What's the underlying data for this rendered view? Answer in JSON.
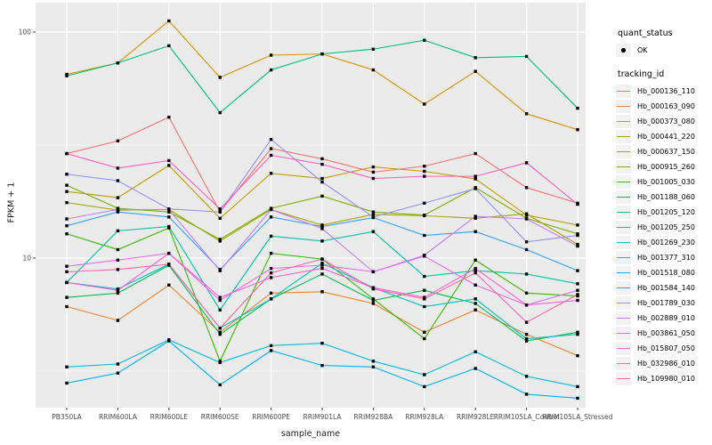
{
  "chart_data": {
    "type": "line",
    "title": "",
    "xlabel": "sample_name",
    "ylabel": "FPKM + 1",
    "y_scale": "log10",
    "ylim": [
      2.2,
      135
    ],
    "yticks": [
      10,
      100
    ],
    "ytick_labels": [
      "10",
      "100"
    ],
    "grid": true,
    "panel_background": "#EBEBEB",
    "grid_color": "#FFFFFF",
    "tick_text_color": "#4D4D4D",
    "point_color": "#000000",
    "point_shape": "small-filled-square",
    "legend_position": "right",
    "marker_legend": {
      "title": "quant_status",
      "label": "OK"
    },
    "series_legend": {
      "title": "tracking_id"
    },
    "categories": [
      "PB350LA",
      "RRIM600LA",
      "RRIM600LE",
      "RRIM600SE",
      "RRIM600PE",
      "RRIM901LA",
      "RRIM928BA",
      "RRIM928LA",
      "RRIM928LE",
      "RRIM105LA_Control",
      "RRIM105LA_Stressed"
    ],
    "series": [
      {
        "name": "Hb_000136_110",
        "color": "#F8766D",
        "values": [
          29,
          33,
          42,
          16,
          30.5,
          27.5,
          24,
          25.5,
          29,
          20.5,
          17.5
        ]
      },
      {
        "name": "Hb_000163_090",
        "color": "#EA8331",
        "values": [
          6.1,
          5.3,
          7.6,
          4.7,
          7.0,
          7.1,
          6.3,
          4.7,
          5.9,
          4.6,
          3.7
        ]
      },
      {
        "name": "Hb_000373_080",
        "color": "#D89000",
        "values": [
          65,
          73,
          112,
          63,
          79,
          80,
          68,
          48,
          67,
          43.5,
          37
        ]
      },
      {
        "name": "Hb_000441_220",
        "color": "#C09B00",
        "values": [
          19.7,
          18.5,
          25.7,
          15,
          23.7,
          22.5,
          25.3,
          24.2,
          22.4,
          15.5,
          14
        ]
      },
      {
        "name": "Hb_000637_150",
        "color": "#A3A500",
        "values": [
          17.6,
          16.3,
          16.4,
          11.9,
          16.4,
          14,
          15.6,
          15.4,
          15,
          15.7,
          11.5
        ]
      },
      {
        "name": "Hb_000915_260",
        "color": "#7CAE00",
        "values": [
          21,
          16.6,
          16,
          12.1,
          16.6,
          18.8,
          16,
          15.5,
          20.5,
          15,
          12.8
        ]
      },
      {
        "name": "Hb_001005_030",
        "color": "#39B600",
        "values": [
          12.8,
          10.9,
          13.6,
          3.5,
          10.5,
          9.9,
          6.6,
          4.4,
          9.8,
          7.0,
          6.8
        ]
      },
      {
        "name": "Hb_001188_060",
        "color": "#00BB4E",
        "values": [
          6.7,
          7.0,
          9.3,
          4.6,
          6.6,
          8.5,
          6.5,
          7.2,
          6.3,
          4.3,
          4.7
        ]
      },
      {
        "name": "Hb_001205_120",
        "color": "#00BF7D",
        "values": [
          64,
          73,
          87,
          44,
          68,
          80,
          84,
          92,
          77,
          78,
          46
        ]
      },
      {
        "name": "Hb_001205_250",
        "color": "#00C1A3",
        "values": [
          7.8,
          13.2,
          13.8,
          5.9,
          12.5,
          11.9,
          13.1,
          8.3,
          8.8,
          8.5,
          7.7
        ]
      },
      {
        "name": "Hb_001269_230",
        "color": "#00BFC4",
        "values": [
          7.8,
          7.3,
          9.4,
          4.9,
          6.6,
          9.5,
          7.4,
          6.1,
          6.6,
          4.4,
          4.6
        ]
      },
      {
        "name": "Hb_001377_310",
        "color": "#00BAE0",
        "values": [
          3.3,
          3.4,
          4.35,
          3.45,
          4.1,
          4.2,
          3.5,
          3.05,
          3.85,
          3.0,
          2.7
        ]
      },
      {
        "name": "Hb_001518_080",
        "color": "#00B0F6",
        "values": [
          2.8,
          3.1,
          4.3,
          2.75,
          3.9,
          3.35,
          3.3,
          2.7,
          3.25,
          2.5,
          2.4
        ]
      },
      {
        "name": "Hb_001584_140",
        "color": "#35A2FF",
        "values": [
          13.9,
          16,
          15.2,
          8.9,
          15.2,
          13.8,
          15.1,
          12.6,
          13.1,
          10.9,
          8.8
        ]
      },
      {
        "name": "Hb_001789_030",
        "color": "#9590FF",
        "values": [
          23.5,
          22,
          16.5,
          16,
          33.5,
          21.7,
          15.2,
          17.5,
          20.3,
          11.8,
          12.6
        ]
      },
      {
        "name": "Hb_002889_010",
        "color": "#C77CFF",
        "values": [
          14.9,
          16.4,
          16.4,
          8.8,
          16.4,
          13.5,
          8.7,
          10.3,
          15.3,
          14.9,
          11.3
        ]
      },
      {
        "name": "Hb_003861_050",
        "color": "#E76BF3",
        "values": [
          9.2,
          9.8,
          10.5,
          6.5,
          9.0,
          9.3,
          8.7,
          10.2,
          7.6,
          6.2,
          7.2
        ]
      },
      {
        "name": "Hb_015807_050",
        "color": "#FA62DB",
        "values": [
          7.8,
          7.2,
          10.5,
          6.7,
          8.2,
          9.0,
          7.4,
          6.7,
          9.0,
          6.2,
          6.5
        ]
      },
      {
        "name": "Hb_032986_010",
        "color": "#FF61C3",
        "values": [
          29,
          25,
          27,
          16.5,
          28.5,
          26,
          22.5,
          23,
          23,
          26.4,
          17.3
        ]
      },
      {
        "name": "Hb_109980_010",
        "color": "#FF67A4",
        "values": [
          8.7,
          8.9,
          9.4,
          4.9,
          8.6,
          9.9,
          7.3,
          6.6,
          8.6,
          5.2,
          6.9
        ]
      }
    ]
  }
}
